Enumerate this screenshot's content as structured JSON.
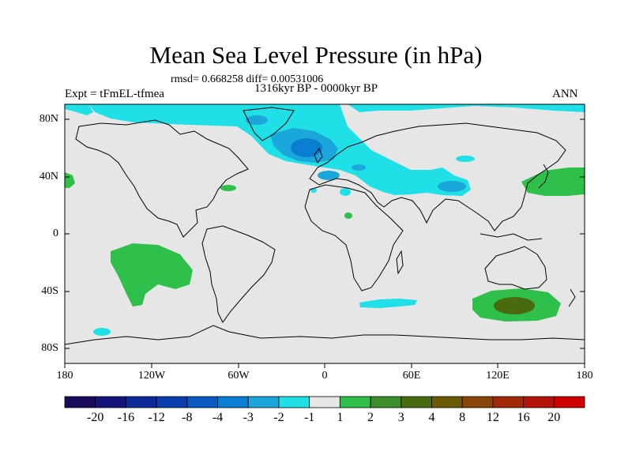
{
  "title": "Mean Sea Level Pressure (in hPa)",
  "stats_line": "rmsd= 0.668258 diff= 0.00531006",
  "period": "1316kyr BP - 0000kyr BP",
  "experiment": "Expt = tFmEL-tfmea",
  "season": "ANN",
  "axes": {
    "lon_labels": [
      "180",
      "120W",
      "60W",
      "0",
      "60E",
      "120E",
      "180"
    ],
    "lat_labels": [
      "80N",
      "40N",
      "0",
      "40S",
      "80S"
    ]
  },
  "colorbar": {
    "labels": [
      "-20",
      "-16",
      "-12",
      "-8",
      "-4",
      "-3",
      "-2",
      "-1",
      "1",
      "2",
      "3",
      "4",
      "8",
      "12",
      "16",
      "20"
    ],
    "colors": [
      "#1a0a5c",
      "#14147c",
      "#0e2a98",
      "#0a3fae",
      "#0a5ac4",
      "#0a7ed2",
      "#1ba7dc",
      "#1fe0e6",
      "#e6e6e6",
      "#2ec04a",
      "#3c8e2a",
      "#4a6a10",
      "#6a5a08",
      "#8a4508",
      "#a02a08",
      "#b41408",
      "#d00000"
    ]
  },
  "colors": {
    "land_background": "#e6e6e6",
    "negative_1_to_2": "#1fe0e6",
    "negative_2_to_3": "#1ba7dc",
    "negative_3_to_4": "#0a7ed2",
    "positive_1_to_2": "#2ec04a",
    "positive_3_to_4": "#4a6a10",
    "coastline": "#000000"
  }
}
